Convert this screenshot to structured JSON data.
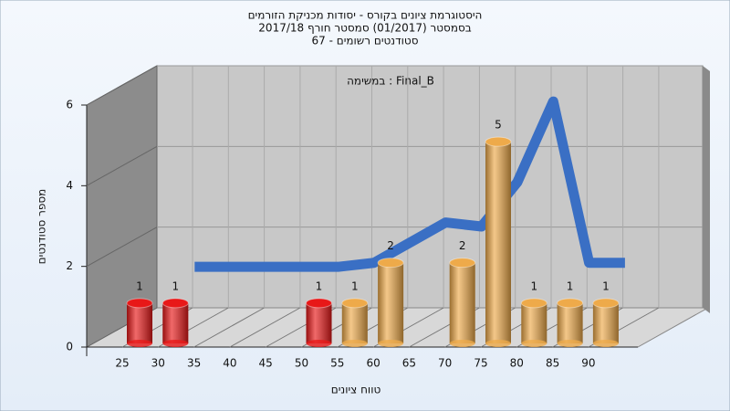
{
  "chart_data": {
    "type": "bar",
    "title": [
      "היסטוגרמת ציונים בקורס - יסודות מכניקת הזורמים",
      "בסמסטר  (01/2017)  סמסטר חורף  2017/18",
      "סטודנטים רשומים - 67"
    ],
    "annotation": "במשימה : Final_B",
    "x_label": "טווח ציונים",
    "y_label": "מספר סטודנטים",
    "categories": [
      25,
      30,
      35,
      40,
      45,
      50,
      55,
      60,
      65,
      70,
      75,
      80,
      85,
      90
    ],
    "values": [
      1,
      1,
      0,
      0,
      0,
      1,
      1,
      2,
      0,
      2,
      5,
      1,
      1,
      1
    ],
    "colors": [
      "#e81818",
      "#e81818",
      "#e81818",
      "#e81818",
      "#e81818",
      "#e81818",
      "#eeaa4a",
      "#eeaa4a",
      "#eeaa4a",
      "#eeaa4a",
      "#eeaa4a",
      "#eeaa4a",
      "#eeaa4a",
      "#eeaa4a"
    ],
    "trend": {
      "color": "#3a6fc4",
      "values": [
        null,
        1.4,
        1.4,
        1.4,
        1.4,
        1.4,
        1.5,
        2.0,
        2.5,
        2.4,
        3.5,
        5.5,
        1.5,
        1.5
      ]
    },
    "ylim": [
      0,
      6
    ],
    "yticks": [
      0,
      2,
      4,
      6
    ],
    "grid": true
  }
}
